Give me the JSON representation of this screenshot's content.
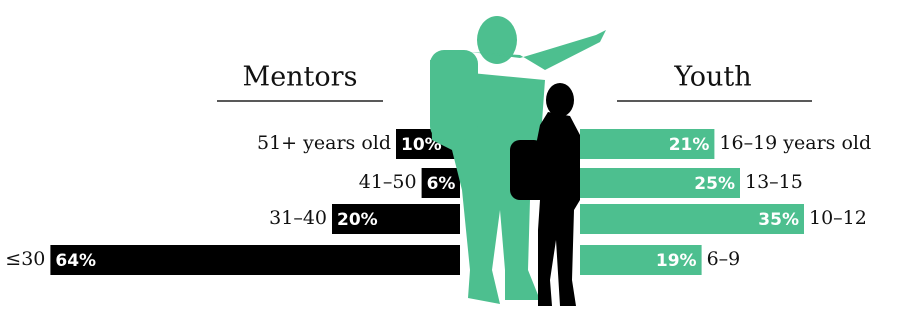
{
  "chart_data": [
    {
      "type": "bar",
      "title": "Mentors",
      "direction": "left",
      "color": "#000000",
      "categories": [
        "51+ years old",
        "41–50",
        "31–40",
        "≤30"
      ],
      "values": [
        10,
        6,
        20,
        64
      ],
      "value_labels": [
        "10%",
        "6%",
        "20%",
        "64%"
      ]
    },
    {
      "type": "bar",
      "title": "Youth",
      "direction": "right",
      "color": "#4dbf8f",
      "categories": [
        "16–19 years old",
        "13–15",
        "10–12",
        "6–9"
      ],
      "values": [
        21,
        25,
        35,
        19
      ],
      "value_labels": [
        "21%",
        "25%",
        "35%",
        "19%"
      ]
    }
  ]
}
